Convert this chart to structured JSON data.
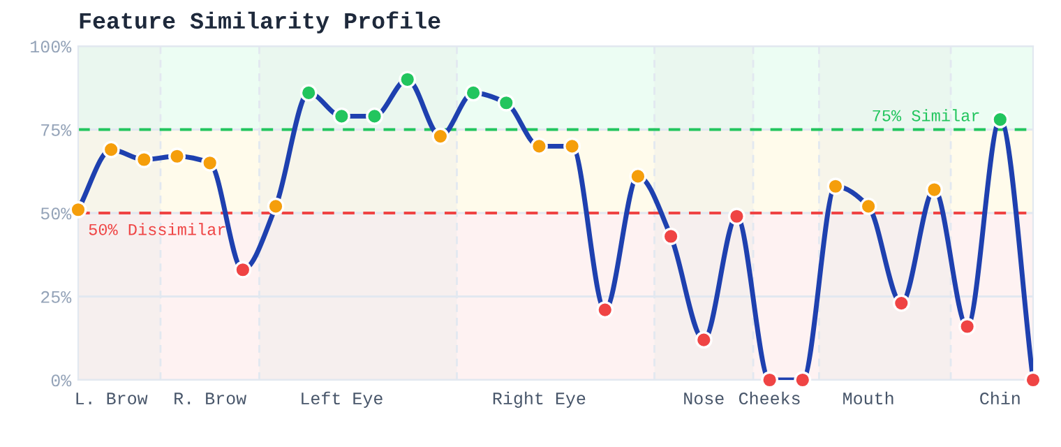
{
  "chart_data": {
    "type": "line",
    "title": "Feature Similarity Profile",
    "categories": [
      null,
      "L. Brow",
      null,
      null,
      "R. Brow",
      null,
      null,
      null,
      "Left Eye",
      null,
      null,
      null,
      null,
      null,
      "Right Eye",
      null,
      null,
      null,
      null,
      "Nose",
      null,
      "Cheeks",
      null,
      null,
      "Mouth",
      null,
      null,
      null,
      "Chin",
      null
    ],
    "series": [
      {
        "color": "#1e40af",
        "values": [
          51,
          69,
          66,
          67,
          65,
          33,
          52,
          86,
          79,
          79,
          90,
          73,
          86,
          83,
          70,
          70,
          21,
          61,
          43,
          12,
          49,
          0,
          0,
          58,
          52,
          23,
          57,
          16,
          78,
          0
        ],
        "colors": [
          "#f59e0b",
          "#f59e0b",
          "#f59e0b",
          "#f59e0b",
          "#f59e0b",
          "#ef4444",
          "#f59e0b",
          "#22c55e",
          "#22c55e",
          "#22c55e",
          "#22c55e",
          "#f59e0b",
          "#22c55e",
          "#22c55e",
          "#f59e0b",
          "#f59e0b",
          "#ef4444",
          "#f59e0b",
          "#ef4444",
          "#ef4444",
          "#ef4444",
          "#ef4444",
          "#ef4444",
          "#f59e0b",
          "#f59e0b",
          "#ef4444",
          "#f59e0b",
          "#ef4444",
          "#22c55e",
          "#ef4444"
        ]
      }
    ],
    "ylim": [
      0,
      100
    ],
    "yticks": [
      {
        "value": 0,
        "label": "0%"
      },
      {
        "value": 25,
        "label": "25%"
      },
      {
        "value": 50,
        "label": "50%"
      },
      {
        "value": 75,
        "label": "75%"
      },
      {
        "value": 100,
        "label": "100%"
      }
    ],
    "grid": "y",
    "marker": "circle",
    "line_style": "solid",
    "ref_lines": [
      {
        "axis": "y",
        "value": 75,
        "label": "75% Similar",
        "color": "#22c55e",
        "line_style": "dashed"
      },
      {
        "axis": "y",
        "value": 50,
        "label": "50% Dissimilar",
        "color": "#ef4444",
        "line_style": "dashed"
      }
    ],
    "bands": [
      {
        "axis": "y",
        "from": 75,
        "to": 100,
        "color": "#ecfdf3"
      },
      {
        "axis": "y",
        "from": 50,
        "to": 75,
        "color": "#fffbeb"
      },
      {
        "axis": "y",
        "from": 0,
        "to": 50,
        "color": "#fef2f2"
      }
    ]
  }
}
